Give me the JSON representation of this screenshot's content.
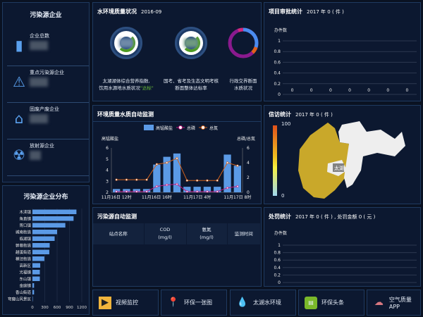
{
  "enterprise": {
    "title": "污染源企业",
    "items": [
      {
        "label": "企业总数",
        "icon": "building-icon"
      },
      {
        "label": "重点污染源企业",
        "icon": "warning-building-icon"
      },
      {
        "label": "固废产废企业",
        "icon": "factory-icon"
      },
      {
        "label": "放射源企业",
        "icon": "radiation-icon"
      }
    ]
  },
  "distribution": {
    "title": "污染源企业分布"
  },
  "water": {
    "title": "水环境质量状况",
    "date": "2016-09",
    "dials": [
      {
        "caption1": "太湖湖体综合营养指数,",
        "caption2": "饮用水源地水质状况",
        "status": "\"达标\""
      },
      {
        "caption1": "国考、省考及生态文明考核",
        "caption2": "断面整体达标率"
      },
      {
        "caption1": "行政交界断面",
        "caption2": "水质状况"
      }
    ],
    "colors": {
      "green": "#4c9a22",
      "blue": "#4a8cf0",
      "purple": "#8a1a8e",
      "orange": "#e0601a",
      "pink": "#d42a7a"
    }
  },
  "monitor": {
    "title": "环境质量水质自动监测"
  },
  "pollution_table": {
    "title": "污染源自动监测",
    "columns": [
      {
        "l1": "站点名称",
        "l2": ""
      },
      {
        "l1": "COD",
        "l2": "(mg/l)"
      },
      {
        "l1": "氨氮",
        "l2": "(mg/l)"
      },
      {
        "l1": "监测时间",
        "l2": ""
      }
    ]
  },
  "approval": {
    "title": "项目审批统计",
    "sub": "2017 年 0 ( 件 )"
  },
  "petition": {
    "title": "信访统计",
    "sub": "2017 年 0 ( 件 )",
    "scale_max": "100",
    "scale_min": "0",
    "map_label": "太湖",
    "colors": {
      "region": "#c9a82a",
      "other": "#eeeeee"
    }
  },
  "penalty": {
    "title": "处罚统计",
    "sub": "2017 年 0 ( 件 ) , 处罚金额 0 ( 元 )"
  },
  "buttons": [
    {
      "label": "视频监控",
      "icon": "video-camera-icon"
    },
    {
      "label": "环保一张图",
      "icon": "map-pin-icon"
    },
    {
      "label": "太湖水环境",
      "icon": "water-drop-icon"
    },
    {
      "label": "环保头条",
      "icon": "news-icon"
    },
    {
      "label": "空气质量APP",
      "icon": "cloud-icon"
    }
  ],
  "chart_data": [
    {
      "type": "bar",
      "orientation": "horizontal",
      "categories": [
        "木渎镇",
        "角直镇",
        "胥口镇",
        "城南街道",
        "临湖镇",
        "郭巷街道",
        "越溪街道",
        "横泾街道",
        "高新区",
        "光福镇",
        "东山镇",
        "金庭镇",
        "香山街道",
        "穹窿山风景区"
      ],
      "values": [
        1070,
        1000,
        800,
        600,
        540,
        420,
        410,
        290,
        190,
        180,
        180,
        40,
        40,
        5
      ],
      "xlim": [
        0,
        1200
      ],
      "xticks": [
        0,
        300,
        600,
        900,
        1200
      ],
      "grid": true,
      "color": "#5b9ae6"
    },
    {
      "type": "bar+line",
      "categories": [
        "11月16日 12时",
        "",
        "",
        "",
        "11月16日 16时",
        "",
        "",
        "",
        "11月17日 4时",
        "",
        "",
        "",
        "11月17日 8时"
      ],
      "xtick_labels": [
        "11月16日 12时",
        "11月16日 16时",
        "11月17日 4时",
        "11月17日 8时"
      ],
      "legend": "top",
      "ylabel_left": "高锰酸盐",
      "ylabel_right": "总磷/总氮",
      "ylim_left": [
        2,
        6
      ],
      "ylim_right": [
        0,
        6
      ],
      "yticks_left": [
        2,
        3,
        4,
        5,
        6
      ],
      "yticks_right": [
        0,
        2,
        4,
        6
      ],
      "series": [
        {
          "name": "高锰酸盐",
          "type": "bar",
          "axis": "left",
          "color": "#5b9ae6",
          "values": [
            2.3,
            2.3,
            2.3,
            2.3,
            4.5,
            5.2,
            5.5,
            2.5,
            2.5,
            2.5,
            2.5,
            5.4,
            4.4
          ]
        },
        {
          "name": "总磷",
          "type": "line",
          "axis": "right",
          "color": "#c2187e",
          "values": [
            0.1,
            0.1,
            0.1,
            0.1,
            0.8,
            1.0,
            1.1,
            0.1,
            0.1,
            0.1,
            0.1,
            0.6,
            0.8
          ]
        },
        {
          "name": "总氮",
          "type": "line",
          "axis": "right",
          "color": "#d0601c",
          "values": [
            1.7,
            1.7,
            1.7,
            1.7,
            3.8,
            4.0,
            4.6,
            1.6,
            1.6,
            1.6,
            1.6,
            4.0,
            3.6
          ]
        }
      ]
    },
    {
      "type": "bar",
      "ylabel": "办件数",
      "ylim": [
        0,
        1
      ],
      "yticks": [
        "0",
        "0.2",
        "0.4",
        "0.6",
        "0.8",
        "1"
      ],
      "values": [
        0,
        0,
        0,
        0,
        0,
        0,
        0
      ],
      "grid": true
    },
    {
      "type": "bar",
      "ylabel": "办件数",
      "ylim": [
        0,
        1
      ],
      "yticks": [
        "0",
        "0.2",
        "0.4",
        "0.6",
        "0.8",
        "1"
      ],
      "values": [],
      "grid": true
    }
  ]
}
